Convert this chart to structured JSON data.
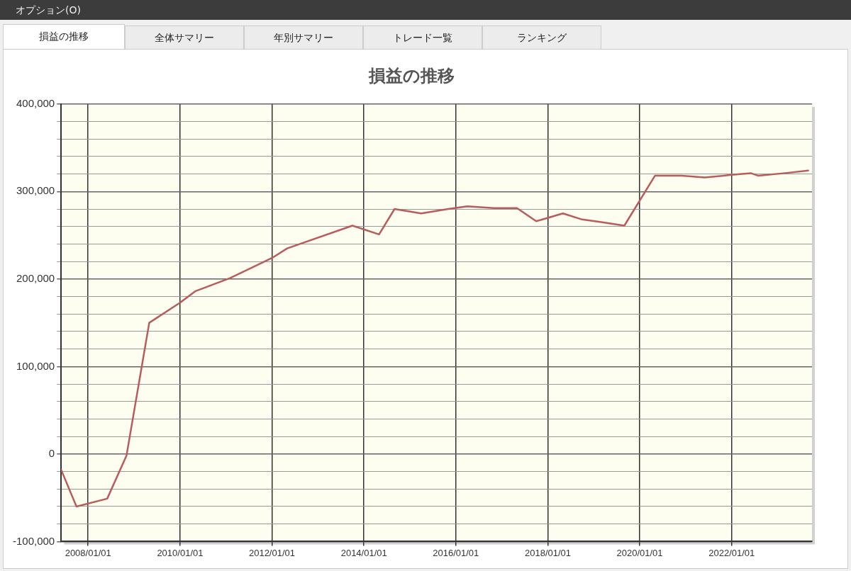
{
  "chart_data": {
    "type": "line",
    "title": "損益の推移",
    "annotations": [
      "オプション(O)",
      "損益の推移",
      "全体サマリー",
      "年別サマリー",
      "トレード一覧",
      "ランキング"
    ],
    "x": [
      "2007-06",
      "2007-10",
      "2008-06",
      "2008-11",
      "2009-05",
      "2010-01",
      "2010-05",
      "2011-02",
      "2012-01",
      "2012-05",
      "2013-10",
      "2014-05",
      "2014-09",
      "2015-04",
      "2015-11",
      "2016-04",
      "2016-11",
      "2017-05",
      "2017-10",
      "2018-05",
      "2018-10",
      "2019-03",
      "2019-09",
      "2020-05",
      "2020-12",
      "2021-06",
      "2022-01",
      "2022-06",
      "2022-08",
      "2023-03",
      "2023-09"
    ],
    "series": [
      {
        "color": "#b85c5c",
        "values": [
          -18000,
          -60000,
          -51000,
          -2000,
          150000,
          173000,
          186000,
          201000,
          224000,
          235000,
          261000,
          251000,
          280000,
          275000,
          280000,
          283000,
          281000,
          281000,
          266000,
          275000,
          268000,
          265000,
          261000,
          318000,
          318000,
          316000,
          319000,
          321000,
          318000,
          321000,
          324000
        ]
      }
    ],
    "xlim": [
      "2007-06",
      "2023-10"
    ],
    "xticks": [
      {
        "value": "2008-01-01",
        "label": "2008/01/01"
      },
      {
        "value": "2010-01-01",
        "label": "2010/01/01"
      },
      {
        "value": "2012-01-01",
        "label": "2012/01/01"
      },
      {
        "value": "2014-01-01",
        "label": "2014/01/01"
      },
      {
        "value": "2016-01-01",
        "label": "2016/01/01"
      },
      {
        "value": "2018-01-01",
        "label": "2018/01/01"
      },
      {
        "value": "2020-01-01",
        "label": "2020/01/01"
      },
      {
        "value": "2022-01-01",
        "label": "2022/01/01"
      }
    ],
    "ylim": [
      -100000,
      400000
    ],
    "yticks": [
      {
        "value": -100000,
        "label": "-100,000"
      },
      {
        "value": -80000,
        "label": null
      },
      {
        "value": -60000,
        "label": null
      },
      {
        "value": -40000,
        "label": null
      },
      {
        "value": -20000,
        "label": null
      },
      {
        "value": 0,
        "label": "0"
      },
      {
        "value": 20000,
        "label": null
      },
      {
        "value": 40000,
        "label": null
      },
      {
        "value": 60000,
        "label": null
      },
      {
        "value": 80000,
        "label": null
      },
      {
        "value": 100000,
        "label": "100,000"
      },
      {
        "value": 120000,
        "label": null
      },
      {
        "value": 140000,
        "label": null
      },
      {
        "value": 160000,
        "label": null
      },
      {
        "value": 180000,
        "label": null
      },
      {
        "value": 200000,
        "label": "200,000"
      },
      {
        "value": 220000,
        "label": null
      },
      {
        "value": 240000,
        "label": null
      },
      {
        "value": 260000,
        "label": null
      },
      {
        "value": 280000,
        "label": null
      },
      {
        "value": 300000,
        "label": "300,000"
      },
      {
        "value": 320000,
        "label": null
      },
      {
        "value": 340000,
        "label": null
      },
      {
        "value": 360000,
        "label": null
      },
      {
        "value": 380000,
        "label": null
      },
      {
        "value": 400000,
        "label": "400,000"
      }
    ],
    "grid": true,
    "legend": false,
    "marker": "none",
    "line_style": "solid"
  }
}
